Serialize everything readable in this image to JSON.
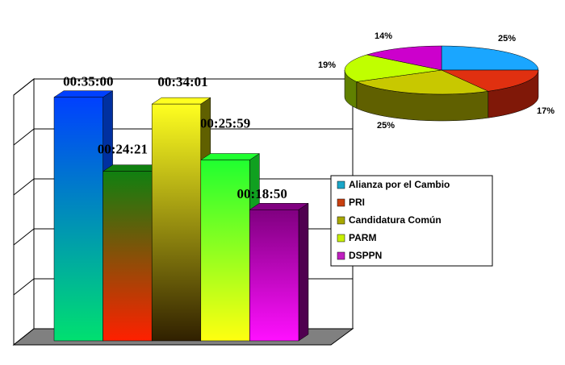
{
  "chart_data": [
    {
      "type": "bar3d",
      "categories": [
        "Alianza por el Cambio",
        "PRI",
        "Candidatura Común",
        "PARM",
        "DSPPN"
      ],
      "values": [
        35,
        24.35,
        34.0167,
        25.9833,
        18.8333
      ],
      "value_labels": [
        "00:35:00",
        "00:24:21",
        "00:34:01",
        "00:25:59",
        "00:18:50"
      ],
      "colors": [
        "#1aa6c8",
        "#c84010",
        "#a8a800",
        "#c8f000",
        "#c020c0"
      ],
      "ylim": [
        0,
        36
      ],
      "yticks": [
        0,
        7.2,
        14.4,
        21.6,
        28.8,
        36
      ],
      "grid": true
    },
    {
      "type": "pie3d",
      "values": [
        25,
        17,
        25,
        19,
        14
      ],
      "value_labels": [
        "25%",
        "17%",
        "25%",
        "19%",
        "14%"
      ],
      "colors": [
        "#1aa6ff",
        "#e03010",
        "#c8c800",
        "#c0ff00",
        "#cc00cc"
      ]
    }
  ]
}
